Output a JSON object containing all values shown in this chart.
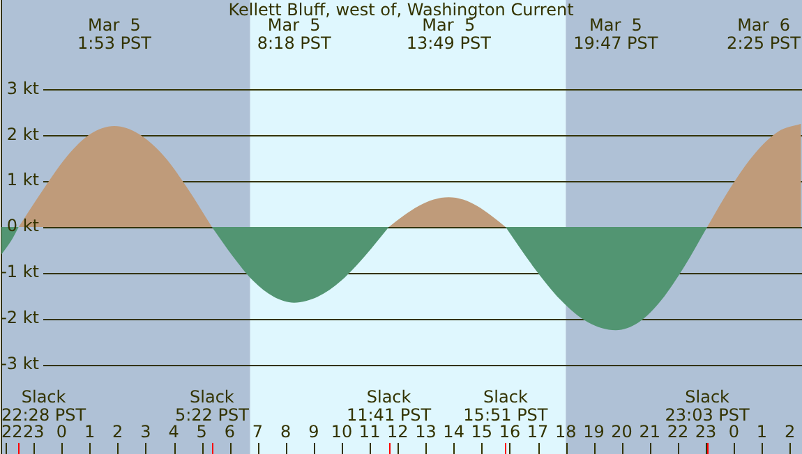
{
  "chart_data": {
    "type": "area",
    "title": "Kellett Bluff, west of, Washington Current",
    "x": [
      "--03-04T21:51",
      "--03-04T22:12",
      "--03-04T22:28",
      "--03-04T23:22",
      "--03-05T00:13",
      "--03-05T01:02",
      "--03-05T01:53",
      "--03-05T02:45",
      "--03-05T03:38",
      "--03-05T04:30",
      "--03-05T05:22",
      "--03-05T06:06",
      "--03-05T06:50",
      "--03-05T07:34",
      "--03-05T08:18",
      "--03-05T09:09",
      "--03-05T09:59",
      "--03-05T10:50",
      "--03-05T11:41",
      "--03-05T12:13",
      "--03-05T12:45",
      "--03-05T13:17",
      "--03-05T13:49",
      "--03-05T14:20",
      "--03-05T14:50",
      "--03-05T15:20",
      "--03-05T15:51",
      "--03-05T16:50",
      "--03-05T17:49",
      "--03-05T18:48",
      "--03-05T19:47",
      "--03-05T20:36",
      "--03-05T21:25",
      "--03-05T22:14",
      "--03-05T23:03",
      "--03-05T23:53",
      "--03-06T00:44",
      "--03-06T01:35",
      "--03-06T02:24"
    ],
    "series": [
      {
        "color": "#bf9b7a",
        "values": [
          null,
          null,
          0,
          0.84,
          1.56,
          2.03,
          2.2,
          2.03,
          1.56,
          0.84,
          0,
          null,
          null,
          null,
          null,
          null,
          null,
          null,
          0,
          0.25,
          0.46,
          0.6,
          0.65,
          0.6,
          0.46,
          0.25,
          0,
          null,
          null,
          null,
          null,
          null,
          null,
          null,
          0,
          0.86,
          1.59,
          2.08,
          2.25
        ]
      },
      {
        "color": "#529572",
        "values": [
          -0.6,
          -0.3,
          0,
          null,
          null,
          null,
          null,
          null,
          null,
          null,
          0,
          -0.63,
          -1.17,
          -1.52,
          -1.65,
          -1.52,
          -1.17,
          -0.63,
          0,
          null,
          null,
          null,
          null,
          null,
          null,
          null,
          0,
          -0.86,
          -1.59,
          -2.08,
          -2.25,
          -2.08,
          -1.59,
          -0.86,
          0,
          null,
          null,
          null,
          null
        ]
      }
    ],
    "xlim": [
      "--03-04T21:51",
      "--03-06T02:26"
    ],
    "xticks": [
      {
        "value": "--03-04T22:00",
        "label": "22"
      },
      {
        "value": "--03-04T23:00",
        "label": "23"
      },
      {
        "value": "--03-05T00:00",
        "label": "0"
      },
      {
        "value": "--03-05T01:00",
        "label": "1"
      },
      {
        "value": "--03-05T02:00",
        "label": "2"
      },
      {
        "value": "--03-05T03:00",
        "label": "3"
      },
      {
        "value": "--03-05T04:00",
        "label": "4"
      },
      {
        "value": "--03-05T05:00",
        "label": "5"
      },
      {
        "value": "--03-05T06:00",
        "label": "6"
      },
      {
        "value": "--03-05T07:00",
        "label": "7"
      },
      {
        "value": "--03-05T08:00",
        "label": "8"
      },
      {
        "value": "--03-05T09:00",
        "label": "9"
      },
      {
        "value": "--03-05T10:00",
        "label": "10"
      },
      {
        "value": "--03-05T11:00",
        "label": "11"
      },
      {
        "value": "--03-05T12:00",
        "label": "12"
      },
      {
        "value": "--03-05T13:00",
        "label": "13"
      },
      {
        "value": "--03-05T14:00",
        "label": "14"
      },
      {
        "value": "--03-05T15:00",
        "label": "15"
      },
      {
        "value": "--03-05T16:00",
        "label": "16"
      },
      {
        "value": "--03-05T17:00",
        "label": "17"
      },
      {
        "value": "--03-05T18:00",
        "label": "18"
      },
      {
        "value": "--03-05T19:00",
        "label": "19"
      },
      {
        "value": "--03-05T20:00",
        "label": "20"
      },
      {
        "value": "--03-05T21:00",
        "label": "21"
      },
      {
        "value": "--03-05T22:00",
        "label": "22"
      },
      {
        "value": "--03-05T23:00",
        "label": "23"
      },
      {
        "value": "--03-06T00:00",
        "label": "0"
      },
      {
        "value": "--03-06T01:00",
        "label": "1"
      },
      {
        "value": "--03-06T02:00",
        "label": "2"
      }
    ],
    "ref_lines": [
      {
        "axis": "x",
        "value": "--03-04T22:28",
        "label": "Slack\n22:28 PST",
        "color": "#ff0000"
      },
      {
        "axis": "x",
        "value": "--03-05T05:22",
        "label": "Slack\n5:22 PST",
        "color": "#ff0000"
      },
      {
        "axis": "x",
        "value": "--03-05T11:41",
        "label": "Slack\n11:41 PST",
        "color": "#ff0000"
      },
      {
        "axis": "x",
        "value": "--03-05T15:51",
        "label": "Slack\n15:51 PST",
        "color": "#ff0000"
      },
      {
        "axis": "x",
        "value": "--03-05T23:03",
        "label": "Slack\n23:03 PST",
        "color": "#ff0000"
      }
    ],
    "x2lim": [
      "--03-04T21:51",
      "--03-06T02:26"
    ],
    "x2ticks": [
      {
        "value": "--03-05T01:53",
        "label": "Mar  5\n1:53 PST"
      },
      {
        "value": "--03-05T08:18",
        "label": "Mar  5\n8:18 PST"
      },
      {
        "value": "--03-05T13:49",
        "label": "Mar  5\n13:49 PST"
      },
      {
        "value": "--03-05T19:47",
        "label": "Mar  5\n19:47 PST"
      },
      {
        "value": "--03-06T02:25",
        "label": "Mar  6\n2:25 PST"
      }
    ],
    "ylim": [
      -4.95,
      4.95
    ],
    "yticks": [
      {
        "value": -3,
        "label": "-3 kt"
      },
      {
        "value": -2,
        "label": "-2 kt"
      },
      {
        "value": -1,
        "label": "-1 kt"
      },
      {
        "value": 0,
        "label": "0 kt"
      },
      {
        "value": 1,
        "label": "1 kt"
      },
      {
        "value": 2,
        "label": "2 kt"
      },
      {
        "value": 3,
        "label": "3 kt"
      }
    ],
    "grid": "y",
    "marker": "none",
    "legend": false,
    "bands": [
      {
        "axis": "x",
        "from": "--03-04T21:51",
        "to": "--03-05T06:44",
        "color": "#afc1d6"
      },
      {
        "axis": "x",
        "from": "--03-05T06:44",
        "to": "--03-05T18:00",
        "color": "#dff7fe"
      },
      {
        "axis": "x",
        "from": "--03-05T18:00",
        "to": "--03-06T02:26",
        "color": "#afc1d6"
      }
    ]
  }
}
